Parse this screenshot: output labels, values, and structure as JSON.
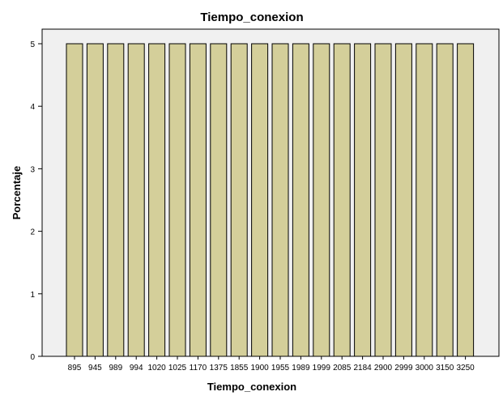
{
  "chart_data": {
    "type": "bar",
    "title": "Tiempo_conexion",
    "xlabel": "Tiempo_conexion",
    "ylabel": "Porcentaje",
    "categories": [
      "895",
      "945",
      "989",
      "994",
      "1020",
      "1025",
      "1170",
      "1375",
      "1855",
      "1900",
      "1955",
      "1989",
      "1999",
      "2085",
      "2184",
      "2900",
      "2999",
      "3000",
      "3150",
      "3250"
    ],
    "values": [
      5,
      5,
      5,
      5,
      5,
      5,
      5,
      5,
      5,
      5,
      5,
      5,
      5,
      5,
      5,
      5,
      5,
      5,
      5,
      5
    ],
    "ylim": [
      0,
      5
    ],
    "yticks": [
      0,
      1,
      2,
      3,
      4,
      5
    ],
    "grid": false,
    "colors": {
      "bar_fill": "#d4cf9a",
      "bar_stroke": "#000000",
      "plot_background": "#f0f0f0"
    }
  }
}
